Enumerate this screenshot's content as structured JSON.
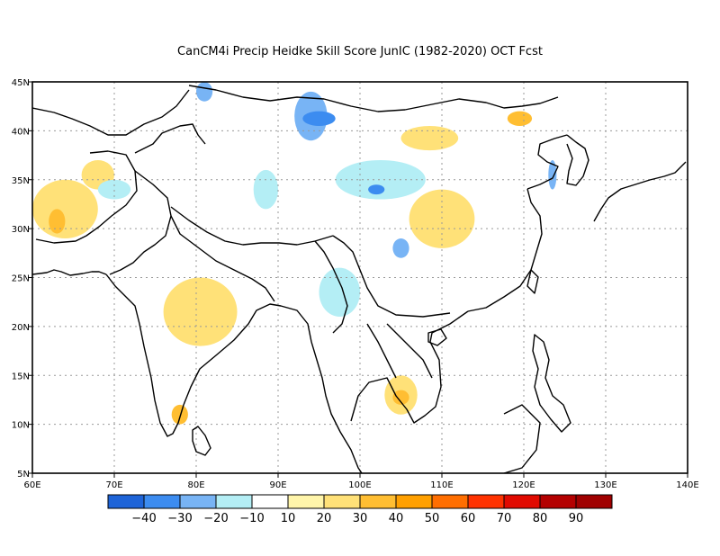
{
  "title": "CanCM4i Precip Heidke Skill Score JunIC (1982-2020) OCT Fcst",
  "map": {
    "lon_range": [
      60,
      140
    ],
    "lat_range": [
      5,
      45
    ],
    "lon_ticks": [
      "60E",
      "70E",
      "80E",
      "90E",
      "100E",
      "110E",
      "120E",
      "130E",
      "140E"
    ],
    "lat_ticks": [
      "45N",
      "40N",
      "35N",
      "30N",
      "25N",
      "20N",
      "15N",
      "10N",
      "5N"
    ],
    "grid": "dotted"
  },
  "colorbar": {
    "colors": [
      "#1e64d8",
      "#3c8cf0",
      "#78b4f5",
      "#b4eef5",
      "#ffffff",
      "#fff5aa",
      "#ffe178",
      "#ffbe32",
      "#ffa000",
      "#ff6e00",
      "#ff3200",
      "#e10a00",
      "#b40000",
      "#a00000"
    ],
    "labels": [
      "-40",
      "-30",
      "-20",
      "-10",
      "10",
      "20",
      "30",
      "40",
      "50",
      "60",
      "70",
      "80",
      "90"
    ]
  },
  "chart_data": {
    "type": "heatmap",
    "title": "CanCM4i Precip Heidke Skill Score JunIC (1982-2020) OCT Fcst",
    "xlabel": "",
    "ylabel": "",
    "xlim": [
      60,
      140
    ],
    "ylim": [
      5,
      45
    ],
    "patches": [
      {
        "lon": [
          60,
          68
        ],
        "lat": [
          29,
          35
        ],
        "value": 20
      },
      {
        "lon": [
          66,
          70
        ],
        "lat": [
          34,
          37
        ],
        "value": 20
      },
      {
        "lon": [
          62,
          64
        ],
        "lat": [
          29.5,
          32
        ],
        "value": 30
      },
      {
        "lon": [
          76,
          85
        ],
        "lat": [
          18,
          25
        ],
        "value": 20
      },
      {
        "lon": [
          77,
          79
        ],
        "lat": [
          10,
          12
        ],
        "value": 30
      },
      {
        "lon": [
          103,
          107
        ],
        "lat": [
          11,
          15
        ],
        "value": 20
      },
      {
        "lon": [
          104,
          106
        ],
        "lat": [
          12,
          13.5
        ],
        "value": 30
      },
      {
        "lon": [
          105,
          112
        ],
        "lat": [
          38,
          40.5
        ],
        "value": 20
      },
      {
        "lon": [
          118,
          121
        ],
        "lat": [
          40.5,
          42
        ],
        "value": 30
      },
      {
        "lon": [
          106,
          114
        ],
        "lat": [
          28,
          34
        ],
        "value": 20
      },
      {
        "lon": [
          92,
          96
        ],
        "lat": [
          39,
          44
        ],
        "value": -20
      },
      {
        "lon": [
          93,
          97
        ],
        "lat": [
          40.5,
          42
        ],
        "value": -30
      },
      {
        "lon": [
          97,
          108
        ],
        "lat": [
          33,
          37
        ],
        "value": -10
      },
      {
        "lon": [
          101,
          103
        ],
        "lat": [
          33.5,
          34.5
        ],
        "value": -30
      },
      {
        "lon": [
          80,
          82
        ],
        "lat": [
          43,
          45
        ],
        "value": -20
      },
      {
        "lon": [
          87,
          90
        ],
        "lat": [
          32,
          36
        ],
        "value": -10
      },
      {
        "lon": [
          95,
          100
        ],
        "lat": [
          21,
          26
        ],
        "value": -10
      },
      {
        "lon": [
          104,
          106
        ],
        "lat": [
          27,
          29
        ],
        "value": -20
      },
      {
        "lon": [
          68,
          72
        ],
        "lat": [
          33,
          35
        ],
        "value": -10
      },
      {
        "lon": [
          123,
          124
        ],
        "lat": [
          34,
          37
        ],
        "value": -20
      }
    ]
  }
}
